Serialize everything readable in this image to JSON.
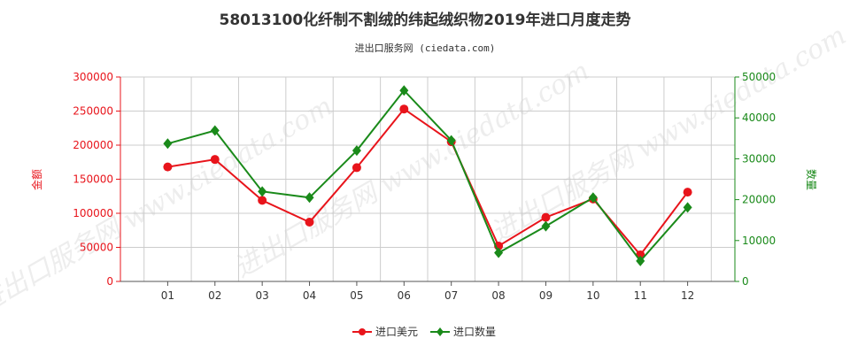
{
  "colors": {
    "amount": "#e8141b",
    "quantity": "#1a8a1a",
    "grid": "#cccccc",
    "text": "#333333"
  },
  "chart_data": {
    "type": "line",
    "title": "58013100化纤制不割绒的纬起绒织物2019年进口月度走势",
    "subtitle": "进出口服务网 (ciedata.com)",
    "watermark": "进出口服务网 www.ciedata.com",
    "categories": [
      "01",
      "02",
      "03",
      "04",
      "05",
      "06",
      "07",
      "08",
      "09",
      "10",
      "11",
      "12"
    ],
    "grid": true,
    "legend_position": "bottom-center",
    "y_left": {
      "label": "金额",
      "lim": [
        0,
        300000
      ],
      "ticks": [
        0,
        50000,
        100000,
        150000,
        200000,
        250000,
        300000
      ]
    },
    "y_right": {
      "label": "数量",
      "lim": [
        0,
        50000
      ],
      "ticks": [
        0,
        10000,
        20000,
        30000,
        40000,
        50000
      ]
    },
    "series": [
      {
        "name": "进口美元",
        "axis": "left",
        "marker": "circle",
        "color": "#e8141b",
        "values": [
          168000,
          179000,
          119000,
          87000,
          167000,
          253000,
          205000,
          52000,
          94000,
          121000,
          39000,
          131000
        ]
      },
      {
        "name": "进口数量",
        "axis": "right",
        "marker": "diamond",
        "color": "#1a8a1a",
        "values": [
          33700,
          36900,
          22000,
          20500,
          32000,
          46700,
          34500,
          7000,
          13500,
          20500,
          5000,
          18100
        ]
      }
    ]
  }
}
